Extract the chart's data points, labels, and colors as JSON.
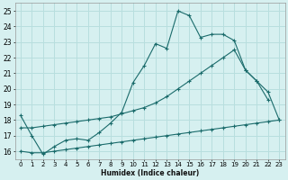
{
  "xlabel": "Humidex (Indice chaleur)",
  "bg_color": "#d6f0f0",
  "grid_color": "#b8dede",
  "line_color": "#1a6b6b",
  "xlim": [
    -0.5,
    23.5
  ],
  "ylim": [
    15.5,
    25.5
  ],
  "xticks": [
    0,
    1,
    2,
    3,
    4,
    5,
    6,
    7,
    8,
    9,
    10,
    11,
    12,
    13,
    14,
    15,
    16,
    17,
    18,
    19,
    20,
    21,
    22,
    23
  ],
  "yticks": [
    16,
    17,
    18,
    19,
    20,
    21,
    22,
    23,
    24,
    25
  ],
  "line1_x": [
    0,
    1,
    2,
    3,
    4,
    5,
    6,
    7,
    8,
    9,
    10,
    11,
    12,
    13,
    14,
    15,
    16,
    17,
    18,
    19,
    20,
    21,
    22
  ],
  "line1_y": [
    18.3,
    17.0,
    15.8,
    16.3,
    16.7,
    16.8,
    16.7,
    17.2,
    17.8,
    18.5,
    20.4,
    21.5,
    22.9,
    22.6,
    25.0,
    24.7,
    23.3,
    23.5,
    23.5,
    23.1,
    21.2,
    20.5,
    19.3
  ],
  "line2_x": [
    0,
    1,
    2,
    3,
    4,
    5,
    6,
    7,
    8,
    9,
    10,
    11,
    12,
    13,
    14,
    15,
    16,
    17,
    18,
    19,
    20,
    21,
    22,
    23
  ],
  "line2_y": [
    17.5,
    17.5,
    17.6,
    17.7,
    17.8,
    17.9,
    18.0,
    18.1,
    18.2,
    18.4,
    18.6,
    18.8,
    19.1,
    19.5,
    20.0,
    20.5,
    21.0,
    21.5,
    22.0,
    22.5,
    21.2,
    20.5,
    19.8,
    18.0
  ],
  "line3_x": [
    0,
    1,
    2,
    3,
    4,
    5,
    6,
    7,
    8,
    9,
    10,
    11,
    12,
    13,
    14,
    15,
    16,
    17,
    18,
    19,
    20,
    21,
    22,
    23
  ],
  "line3_y": [
    16.0,
    15.9,
    15.9,
    16.0,
    16.1,
    16.2,
    16.3,
    16.4,
    16.5,
    16.6,
    16.7,
    16.8,
    16.9,
    17.0,
    17.1,
    17.2,
    17.3,
    17.4,
    17.5,
    17.6,
    17.7,
    17.8,
    17.9,
    18.0
  ]
}
